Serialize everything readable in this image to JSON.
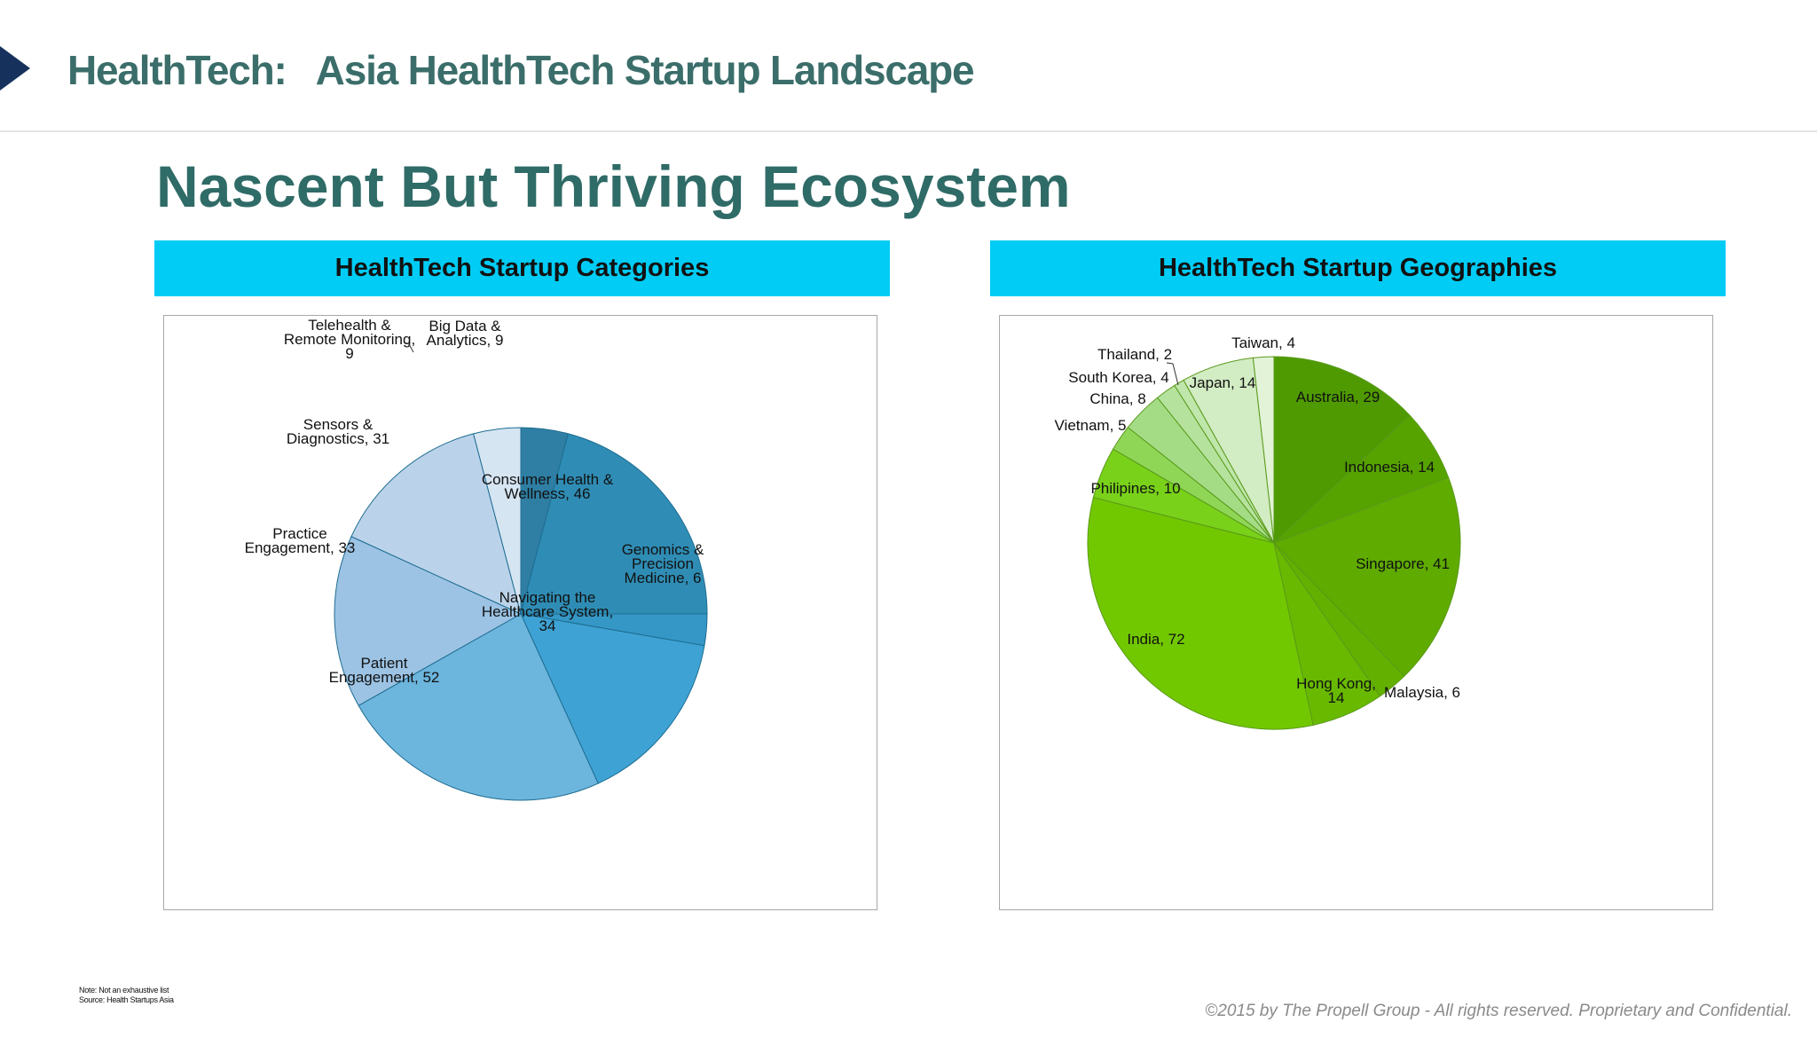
{
  "header": {
    "title": "HealthTech:   Asia HealthTech Startup Landscape"
  },
  "page": {
    "title": "Nascent But Thriving Ecosystem"
  },
  "panels": {
    "left": {
      "heading": "HealthTech Startup Categories"
    },
    "right": {
      "heading": "HealthTech Startup Geographies"
    }
  },
  "footer": {
    "note": "Note: Not an exhaustive list",
    "source": "Source: Health Startups Asia",
    "copyright": "©2015 by The Propell Group -  All rights reserved. Proprietary and Confidential."
  },
  "chart_data": [
    {
      "type": "pie",
      "categories": [
        "Big Data & Analytics",
        "Consumer Health & Wellness",
        "Genomics & Precision Medicine",
        "Navigating the Healthcare System",
        "Patient Engagement",
        "Practice Engagement",
        "Sensors & Diagnostics",
        "Telehealth & Remote Monitoring"
      ],
      "values": [
        9,
        46,
        6,
        34,
        52,
        33,
        31,
        9
      ],
      "labels": [
        [
          "Big Data &",
          "Analytics, 9"
        ],
        [
          "Consumer Health &",
          "Wellness, 46"
        ],
        [
          "Genomics &",
          "Precision",
          "Medicine, 6"
        ],
        [
          "Navigating the",
          "Healthcare System,",
          "34"
        ],
        [
          "Patient",
          "Engagement, 52"
        ],
        [
          "Practice",
          "Engagement, 33"
        ],
        [
          "Sensors &",
          "Diagnostics, 31"
        ],
        [
          "Telehealth &",
          "Remote Monitoring,",
          "9"
        ]
      ],
      "colors": [
        "#2f7ea3",
        "#2f8db5",
        "#3597c6",
        "#3ea3d4",
        "#6cb5dd",
        "#9cc3e4",
        "#bbd3ea",
        "#d6e5f2"
      ],
      "edge_color": "#1e6d92"
    },
    {
      "type": "pie",
      "categories": [
        "Australia",
        "Indonesia",
        "Singapore",
        "Malaysia",
        "Hong Kong",
        "India",
        "Philipines",
        "Vietnam",
        "China",
        "South Korea",
        "Thailand",
        "Japan",
        "Taiwan"
      ],
      "values": [
        29,
        14,
        41,
        6,
        14,
        72,
        10,
        5,
        8,
        4,
        2,
        14,
        4
      ],
      "labels": [
        [
          "Australia, 29"
        ],
        [
          "Indonesia, 14"
        ],
        [
          "Singapore, 41"
        ],
        [
          "Malaysia, 6"
        ],
        [
          "Hong Kong,",
          "14"
        ],
        [
          "India, 72"
        ],
        [
          "Philipines, 10"
        ],
        [
          "Vietnam, 5"
        ],
        [
          "China, 8"
        ],
        [
          "South Korea, 4"
        ],
        [
          "Thailand, 2"
        ],
        [
          "Japan, 14"
        ],
        [
          "Taiwan, 4"
        ]
      ],
      "colors": [
        "#4f9a00",
        "#56a300",
        "#5fab00",
        "#63b000",
        "#68b900",
        "#72c800",
        "#79d11a",
        "#8fd657",
        "#a4dc86",
        "#b5e39e",
        "#bfe6ab",
        "#d2ecc3",
        "#e2f3d8"
      ],
      "edge_color": "#5a9a1a"
    }
  ]
}
